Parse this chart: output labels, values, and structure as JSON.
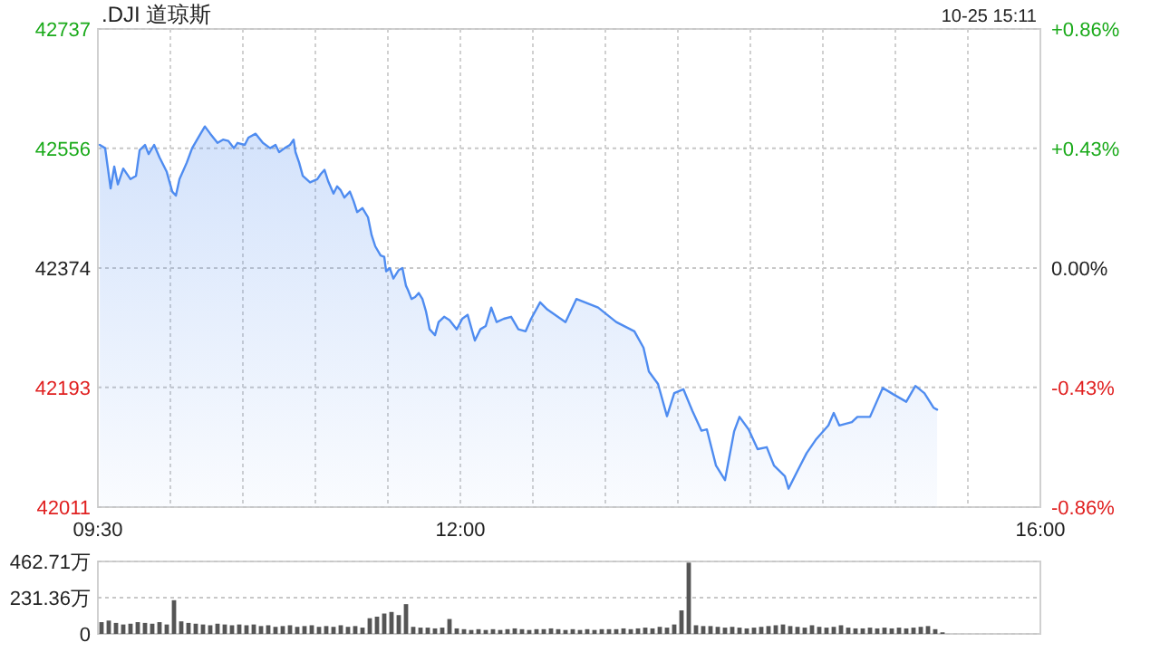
{
  "chart_data": [
    {
      "type": "area",
      "title": ".DJI 道琼斯",
      "subtitle": "10-25 15:11",
      "x": [
        9.513,
        9.55,
        9.588,
        9.613,
        9.638,
        9.675,
        9.725,
        9.763,
        9.788,
        9.825,
        9.85,
        9.888,
        9.925,
        9.975,
        10.013,
        10.038,
        10.063,
        10.113,
        10.15,
        10.2,
        10.238,
        10.275,
        10.325,
        10.363,
        10.4,
        10.438,
        10.463,
        10.513,
        10.538,
        10.588,
        10.638,
        10.688,
        10.725,
        10.75,
        10.788,
        10.825,
        10.85,
        10.863,
        10.888,
        10.913,
        10.963,
        11.013,
        11.038,
        11.063,
        11.088,
        11.125,
        11.15,
        11.175,
        11.2,
        11.238,
        11.263,
        11.288,
        11.325,
        11.363,
        11.388,
        11.413,
        11.45,
        11.475,
        11.488,
        11.513,
        11.538,
        11.575,
        11.6,
        11.625,
        11.638,
        11.663,
        11.688,
        11.713,
        11.738,
        11.763,
        11.788,
        11.825,
        11.85,
        11.888,
        11.925,
        11.975,
        12.013,
        12.05,
        12.1,
        12.138,
        12.175,
        12.213,
        12.25,
        12.3,
        12.35,
        12.4,
        12.45,
        12.488,
        12.55,
        12.6,
        12.725,
        12.8,
        12.95,
        13.075,
        13.2,
        13.263,
        13.3,
        13.363,
        13.425,
        13.475,
        13.538,
        13.6,
        13.663,
        13.7,
        13.763,
        13.825,
        13.888,
        13.925,
        13.988,
        14.05,
        14.113,
        14.163,
        14.238,
        14.263,
        14.325,
        14.388,
        14.45,
        14.538,
        14.575,
        14.613,
        14.7,
        14.738,
        14.825,
        14.913,
        14.988,
        15.075,
        15.138,
        15.2,
        15.263,
        15.288
      ],
      "series": [
        {
          "color": "#4f8cf0",
          "values": [
            42561,
            42556,
            42495,
            42528,
            42501,
            42525,
            42509,
            42514,
            42553,
            42561,
            42547,
            42561,
            42542,
            42520,
            42490,
            42484,
            42509,
            42534,
            42556,
            42575,
            42589,
            42578,
            42564,
            42569,
            42567,
            42556,
            42564,
            42561,
            42572,
            42578,
            42564,
            42556,
            42561,
            42550,
            42556,
            42561,
            42569,
            42550,
            42534,
            42514,
            42504,
            42509,
            42517,
            42523,
            42506,
            42487,
            42498,
            42492,
            42481,
            42490,
            42476,
            42459,
            42465,
            42451,
            42424,
            42407,
            42393,
            42391,
            42369,
            42374,
            42358,
            42371,
            42374,
            42347,
            42341,
            42327,
            42330,
            42336,
            42327,
            42308,
            42281,
            42272,
            42292,
            42300,
            42295,
            42281,
            42297,
            42303,
            42264,
            42281,
            42286,
            42314,
            42292,
            42297,
            42300,
            42281,
            42278,
            42297,
            42322,
            42311,
            42292,
            42327,
            42314,
            42292,
            42278,
            42253,
            42217,
            42198,
            42149,
            42184,
            42190,
            42157,
            42127,
            42129,
            42074,
            42052,
            42126,
            42148,
            42129,
            42099,
            42102,
            42074,
            42058,
            42039,
            42066,
            42093,
            42113,
            42135,
            42154,
            42135,
            42140,
            42148,
            42148,
            42192,
            42182,
            42171,
            42195,
            42184,
            42162,
            42159
          ]
        }
      ],
      "xlim": [
        9.5,
        16
      ],
      "xticks": [
        {
          "value": 9.5,
          "label": "09:30"
        },
        {
          "value": 10,
          "label": null
        },
        {
          "value": 10.5,
          "label": null
        },
        {
          "value": 11,
          "label": null
        },
        {
          "value": 11.5,
          "label": null
        },
        {
          "value": 12,
          "label": "12:00"
        },
        {
          "value": 12.5,
          "label": null
        },
        {
          "value": 13,
          "label": null
        },
        {
          "value": 13.5,
          "label": null
        },
        {
          "value": 14,
          "label": null
        },
        {
          "value": 14.5,
          "label": null
        },
        {
          "value": 15,
          "label": null
        },
        {
          "value": 15.5,
          "label": null
        },
        {
          "value": 16,
          "label": "16:00"
        }
      ],
      "ylim": [
        42011,
        42737
      ],
      "yticks": [
        42011,
        42193,
        42374,
        42556,
        42737
      ],
      "y2lim": [
        -0.86,
        0.86
      ],
      "y2ticks": [
        {
          "value": -0.86,
          "label": "-0.86%"
        },
        {
          "value": -0.43,
          "label": "-0.43%"
        },
        {
          "value": 0,
          "label": "0.00%"
        },
        {
          "value": 0.43,
          "label": "+0.43%"
        },
        {
          "value": 0.86,
          "label": "+0.86%"
        }
      ],
      "grid": true
    },
    {
      "type": "bar",
      "color": "#555555",
      "categories": [
        null,
        null,
        null,
        null,
        null,
        null,
        null,
        null,
        null,
        null,
        null,
        null,
        null,
        null,
        null,
        null,
        null,
        null,
        null,
        null,
        null,
        null,
        null,
        null,
        null,
        null,
        null,
        null,
        null,
        null,
        null,
        null,
        null,
        null,
        null,
        null,
        null,
        null,
        null,
        null,
        null,
        null,
        null,
        null,
        null,
        null,
        null,
        null,
        null,
        null,
        null,
        null,
        null,
        null,
        null,
        null,
        null,
        null,
        null,
        null,
        null,
        null,
        null,
        null,
        null,
        null,
        null,
        null,
        null,
        null,
        null,
        null,
        null,
        null,
        null,
        null,
        null,
        null,
        null,
        null,
        null,
        null,
        null,
        null,
        null,
        null,
        null,
        null,
        null,
        null,
        null,
        null,
        null,
        null,
        null,
        null,
        null,
        null,
        null,
        null,
        null,
        null,
        null,
        null,
        null,
        null,
        null,
        null,
        null,
        null,
        null,
        null,
        null,
        null,
        null,
        null,
        null,
        null,
        null,
        null,
        null,
        null,
        null,
        null,
        null,
        null,
        null,
        null,
        null,
        null
      ],
      "values": [
        75,
        85,
        70,
        60,
        65,
        75,
        70,
        65,
        75,
        60,
        215,
        80,
        70,
        65,
        60,
        55,
        65,
        60,
        55,
        60,
        55,
        60,
        50,
        55,
        45,
        50,
        55,
        45,
        50,
        55,
        45,
        50,
        45,
        55,
        45,
        50,
        40,
        100,
        110,
        130,
        140,
        120,
        190,
        45,
        40,
        40,
        35,
        40,
        95,
        35,
        30,
        25,
        30,
        25,
        30,
        25,
        30,
        35,
        30,
        25,
        30,
        30,
        35,
        30,
        25,
        30,
        25,
        30,
        25,
        30,
        30,
        30,
        35,
        30,
        35,
        40,
        35,
        45,
        40,
        60,
        150,
        455,
        55,
        50,
        50,
        45,
        40,
        45,
        40,
        35,
        40,
        45,
        50,
        55,
        60,
        50,
        45,
        40,
        55,
        45,
        40,
        45,
        55,
        40,
        35,
        35,
        40,
        35,
        40,
        35,
        40,
        35,
        40,
        45,
        50,
        30,
        10,
        null,
        null,
        null,
        null,
        null,
        null,
        null,
        null,
        null,
        null,
        null,
        null,
        null
      ],
      "ylim": [
        0,
        462.71
      ],
      "yticks": [
        0,
        {
          "value": 231.36,
          "label": "231.36万"
        },
        {
          "value": 462.71,
          "label": "462.71万"
        }
      ],
      "grid": "y",
      "tick_labels": "y"
    }
  ]
}
